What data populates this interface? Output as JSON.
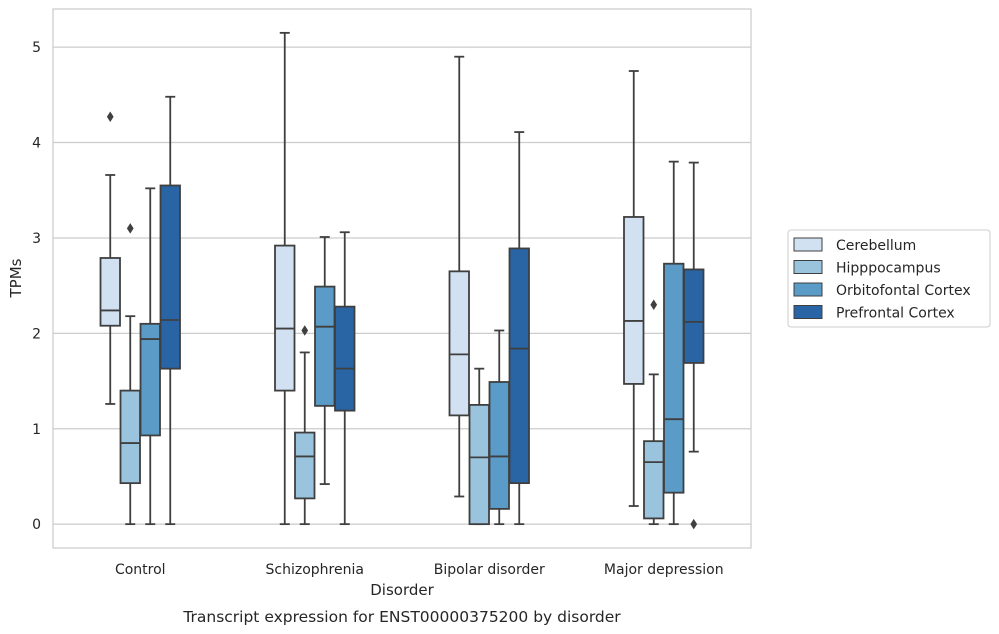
{
  "chart_data": {
    "type": "box",
    "caption": "Transcript expression for ENST00000375200 by disorder",
    "xlabel": "Disorder",
    "ylabel": "TPMs",
    "ylim": [
      -0.25,
      5.4
    ],
    "yticks": [
      0,
      1,
      2,
      3,
      4,
      5
    ],
    "grid": "horizontal",
    "legend_position": "right",
    "categories": [
      "Control",
      "Schizophrenia",
      "Bipolar disorder",
      "Major depression"
    ],
    "series": [
      {
        "name": "Cerebellum",
        "color": "#d1e1f1",
        "boxes": [
          {
            "whisker_low": 1.26,
            "q1": 2.08,
            "median": 2.24,
            "q3": 2.79,
            "whisker_high": 3.66,
            "outliers": [
              4.27
            ]
          },
          {
            "whisker_low": 0.0,
            "q1": 1.4,
            "median": 2.05,
            "q3": 2.92,
            "whisker_high": 5.15,
            "outliers": []
          },
          {
            "whisker_low": 0.29,
            "q1": 1.14,
            "median": 1.78,
            "q3": 2.65,
            "whisker_high": 4.9,
            "outliers": []
          },
          {
            "whisker_low": 0.19,
            "q1": 1.47,
            "median": 2.13,
            "q3": 3.22,
            "whisker_high": 4.75,
            "outliers": []
          }
        ]
      },
      {
        "name": "Hipppocampus",
        "color": "#9ac4de",
        "boxes": [
          {
            "whisker_low": 0.0,
            "q1": 0.43,
            "median": 0.85,
            "q3": 1.4,
            "whisker_high": 2.18,
            "outliers": [
              3.1
            ]
          },
          {
            "whisker_low": 0.0,
            "q1": 0.27,
            "median": 0.71,
            "q3": 0.96,
            "whisker_high": 1.8,
            "outliers": [
              2.03
            ]
          },
          {
            "whisker_low": 0.0,
            "q1": 0.0,
            "median": 0.7,
            "q3": 1.25,
            "whisker_high": 1.63,
            "outliers": []
          },
          {
            "whisker_low": 0.0,
            "q1": 0.06,
            "median": 0.65,
            "q3": 0.87,
            "whisker_high": 1.57,
            "outliers": [
              2.3
            ]
          }
        ]
      },
      {
        "name": "Orbitofontal Cortex",
        "color": "#5a9bc7",
        "boxes": [
          {
            "whisker_low": 0.0,
            "q1": 0.93,
            "median": 1.94,
            "q3": 2.1,
            "whisker_high": 3.52,
            "outliers": []
          },
          {
            "whisker_low": 0.42,
            "q1": 1.24,
            "median": 2.07,
            "q3": 2.49,
            "whisker_high": 3.01,
            "outliers": []
          },
          {
            "whisker_low": 0.0,
            "q1": 0.16,
            "median": 0.71,
            "q3": 1.49,
            "whisker_high": 2.03,
            "outliers": []
          },
          {
            "whisker_low": 0.0,
            "q1": 0.33,
            "median": 1.1,
            "q3": 2.73,
            "whisker_high": 3.8,
            "outliers": []
          }
        ]
      },
      {
        "name": "Prefrontal Cortex",
        "color": "#2964a5",
        "boxes": [
          {
            "whisker_low": 0.0,
            "q1": 1.63,
            "median": 2.14,
            "q3": 3.55,
            "whisker_high": 4.48,
            "outliers": []
          },
          {
            "whisker_low": 0.0,
            "q1": 1.19,
            "median": 1.63,
            "q3": 2.28,
            "whisker_high": 3.06,
            "outliers": []
          },
          {
            "whisker_low": 0.0,
            "q1": 0.43,
            "median": 1.84,
            "q3": 2.89,
            "whisker_high": 4.11,
            "outliers": []
          },
          {
            "whisker_low": 0.76,
            "q1": 1.69,
            "median": 2.12,
            "q3": 2.67,
            "whisker_high": 3.79,
            "outliers": [
              0.0
            ]
          }
        ]
      }
    ]
  }
}
